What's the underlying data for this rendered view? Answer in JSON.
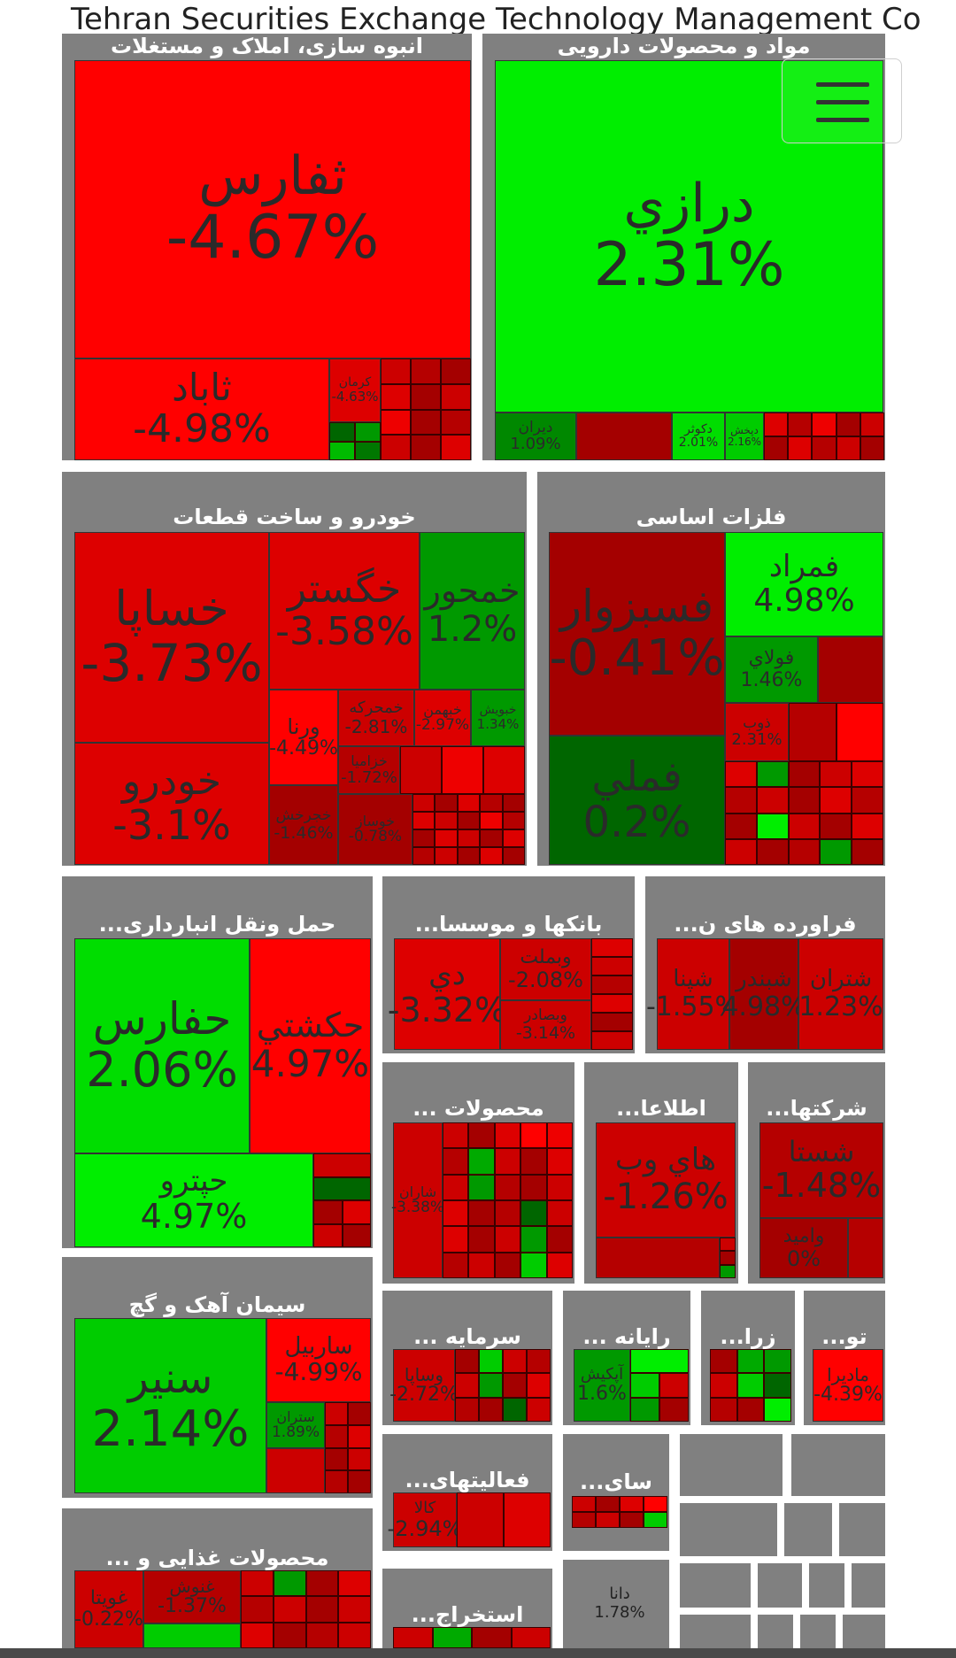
{
  "header": {
    "title": "Tehran Securities Exchange Technology Management Co"
  },
  "sectors": {
    "s1": {
      "title": "انبوه سازی، املاک و مستغلات"
    },
    "s2": {
      "title": "مواد و محصولات دارویی"
    },
    "s3": {
      "title": "خودرو و ساخت قطعات"
    },
    "s4": {
      "title": "فلزات اساسی"
    },
    "s5": {
      "title": "حمل ونقل انبارداری..."
    },
    "s6": {
      "title": "بانکها و موسسا..."
    },
    "s7": {
      "title": "فراورده های ن..."
    },
    "s8": {
      "title": "محصولات ..."
    },
    "s9": {
      "title": "اطلاعا..."
    },
    "s10": {
      "title": "شرکتها..."
    },
    "s11": {
      "title": "سیمان آهک و گچ"
    },
    "s12": {
      "title": "سرمایه ..."
    },
    "s13": {
      "title": "رایانه ..."
    },
    "s14": {
      "title": "زرا..."
    },
    "s15": {
      "title": "تو..."
    },
    "s16": {
      "title": "فعالیتهای..."
    },
    "s17": {
      "title": "سای..."
    },
    "s18": {
      "title": "محصولات غذایی و ..."
    },
    "s19": {
      "title": "استخراج..."
    }
  },
  "tiles": {
    "thfars": {
      "symbol": "ثفارس",
      "pct": "-4.67%"
    },
    "thabad": {
      "symbol": "ثاباد",
      "pct": "-4.98%"
    },
    "kerman": {
      "symbol": "کرمان",
      "pct": "-4.63%"
    },
    "darazi": {
      "symbol": "درازي",
      "pct": "2.31%"
    },
    "diran": {
      "symbol": "ديران",
      "pct": "1.09%"
    },
    "daloot": {
      "symbol": "دکوثر",
      "pct": "2.01%"
    },
    "dpakhsh": {
      "symbol": "دپخش",
      "pct": "2.16%"
    },
    "khsapa": {
      "symbol": "خساپا",
      "pct": "-3.73%"
    },
    "khgostar": {
      "symbol": "خگستر",
      "pct": "-3.58%"
    },
    "khmehvar": {
      "symbol": "خمحور",
      "pct": "1.2%"
    },
    "khodro": {
      "symbol": "خودرو",
      "pct": "-3.1%"
    },
    "varna": {
      "symbol": "ورنا",
      "pct": "-4.49%"
    },
    "khmahrk": {
      "symbol": "خمحرکه",
      "pct": "-2.81%"
    },
    "khbahman": {
      "symbol": "خبهمن",
      "pct": "-2.97%"
    },
    "khbevish": {
      "symbol": "خبويش",
      "pct": "1.34%"
    },
    "khzamia": {
      "symbol": "خزاميا",
      "pct": "-1.72%"
    },
    "khjarkh": {
      "symbol": "خجرخش",
      "pct": "-1.46%"
    },
    "khosdar": {
      "symbol": "خوساز",
      "pct": "-0.78%"
    },
    "fsabzevar": {
      "symbol": "فسبزوار",
      "pct": "-0.41%"
    },
    "fmorad": {
      "symbol": "فمراد",
      "pct": "4.98%"
    },
    "foolad": {
      "symbol": "فولاي",
      "pct": "1.46%"
    },
    "fmelli": {
      "symbol": "فملي",
      "pct": "0.2%"
    },
    "zob": {
      "symbol": "ذوب",
      "pct": "2.31%"
    },
    "hfars": {
      "symbol": "حفارس",
      "pct": "2.06%"
    },
    "hkeshti": {
      "symbol": "حكشتي",
      "pct": "4.97%"
    },
    "chtro": {
      "symbol": "حپترو",
      "pct": "4.97%"
    },
    "di": {
      "symbol": "دي",
      "pct": "-3.32%"
    },
    "vbemelat": {
      "symbol": "وبملت",
      "pct": "-2.08%"
    },
    "vbsader": {
      "symbol": "وبصادر",
      "pct": "-3.14%"
    },
    "shtran": {
      "symbol": "شتران",
      "pct": "1.23%"
    },
    "shbandar": {
      "symbol": "شبندر",
      "pct": "4.98%"
    },
    "shpena": {
      "symbol": "شپنا",
      "pct": "-1.55%"
    },
    "sharan": {
      "symbol": "شاران",
      "pct": "-3.38%"
    },
    "hiweb": {
      "symbol": "هاي وب",
      "pct": "-1.26%"
    },
    "shasta": {
      "symbol": "شستا",
      "pct": "-1.48%"
    },
    "vomid": {
      "symbol": "واميد",
      "pct": "0%"
    },
    "snir": {
      "symbol": "سنير",
      "pct": "2.14%"
    },
    "sarbil": {
      "symbol": "ساربيل",
      "pct": "-4.99%"
    },
    "stran": {
      "symbol": "ستران",
      "pct": "1.89%"
    },
    "vsapa": {
      "symbol": "وساپا",
      "pct": "-2.72%"
    },
    "apkish": {
      "symbol": "آپکيش",
      "pct": "1.6%"
    },
    "madira": {
      "symbol": "ماديرا",
      "pct": "-4.39%"
    },
    "kala": {
      "symbol": "کالا",
      "pct": "-2.94%"
    },
    "ghooyta": {
      "symbol": "غويتا",
      "pct": "-0.22%"
    },
    "ghnoosh": {
      "symbol": "غنوش",
      "pct": "-1.37%"
    },
    "dana": {
      "symbol": "دانا",
      "pct": "1.78%"
    }
  },
  "colors": {
    "bright_red": "#ff0000",
    "red": "#dd0000",
    "dark_red": "#a40000",
    "bright_green": "#00ee00",
    "green": "#009900",
    "dark_green": "#006600",
    "sector_gray": "#808080"
  },
  "menu": {
    "icon": "hamburger-icon"
  }
}
